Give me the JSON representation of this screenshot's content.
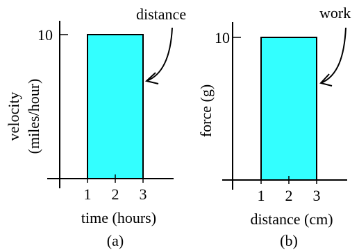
{
  "colors": {
    "fill": "#33ffff",
    "ink": "#000000",
    "background": "#ffffff"
  },
  "panels": [
    {
      "caption": "(a)",
      "ylabel_lines": [
        "velocity",
        "(miles/hour)"
      ],
      "xlabel": "time (hours)",
      "y_tick_label": "10",
      "x_tick_labels": [
        "1",
        "2",
        "3"
      ],
      "annotation": "distance",
      "rect": {
        "x_from": 1,
        "x_to": 3,
        "y_from": 0,
        "y_to": 10
      }
    },
    {
      "caption": "(b)",
      "ylabel_lines": [
        "force (g)"
      ],
      "xlabel": "distance (cm)",
      "y_tick_label": "10",
      "x_tick_labels": [
        "1",
        "2",
        "3"
      ],
      "annotation": "work",
      "rect": {
        "x_from": 1,
        "x_to": 3,
        "y_from": 0,
        "y_to": 10
      }
    }
  ]
}
